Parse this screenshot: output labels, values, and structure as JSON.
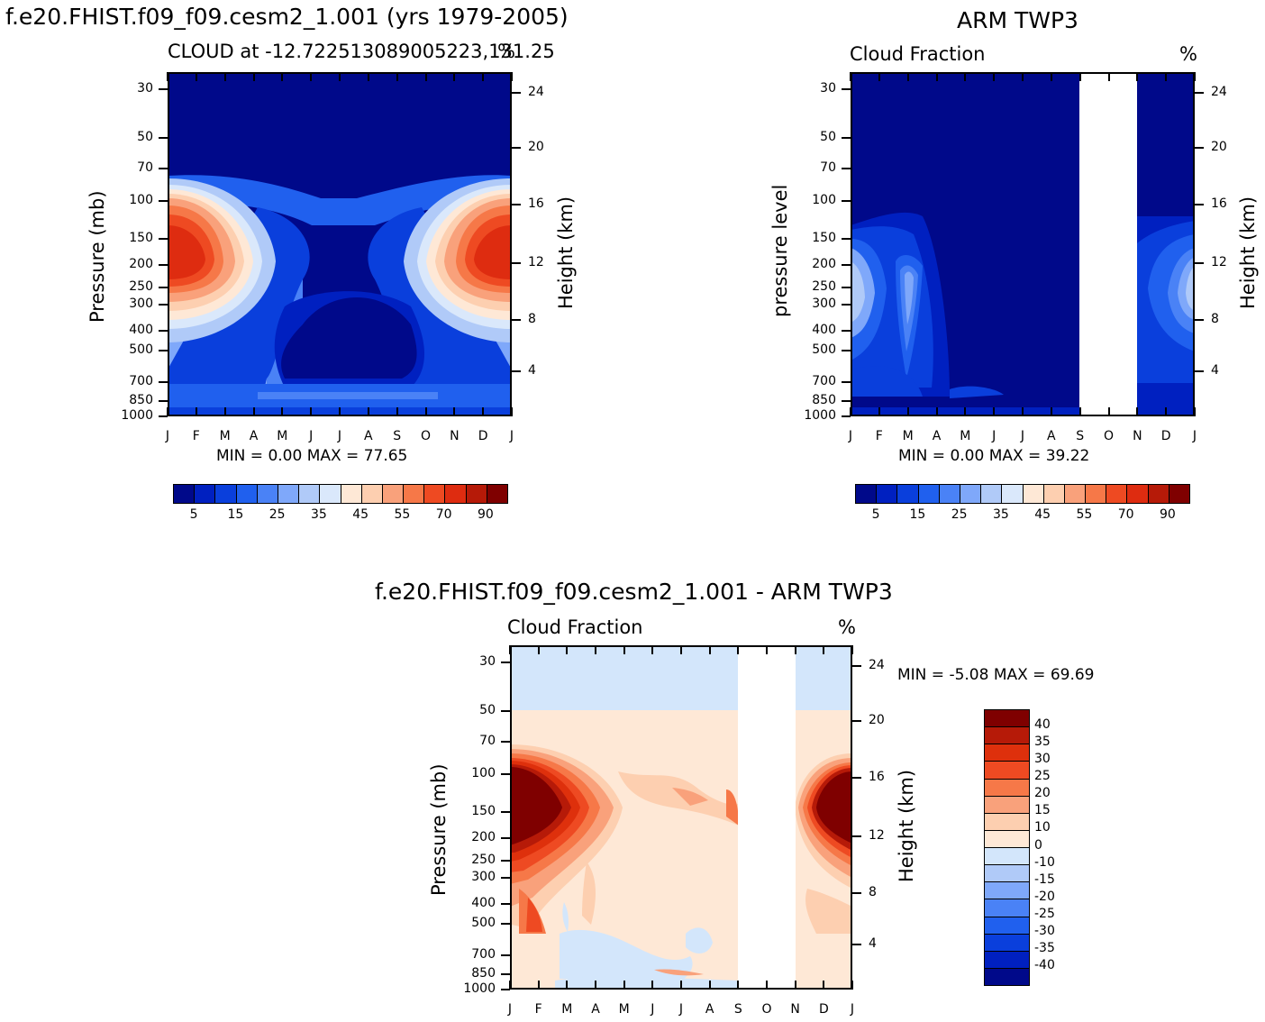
{
  "chart_data": [
    {
      "type": "heatmap",
      "title": "f.e20.FHIST.f09_f09.cesm2_1.001 (yrs 1979-2005)",
      "subtitle": "CLOUD at -12.722513089005223,131.25",
      "units": "%",
      "xlabel": "",
      "ylabel": "Pressure (mb)",
      "ylabel_right": "Height (km)",
      "x_ticks": [
        "J",
        "F",
        "M",
        "A",
        "M",
        "J",
        "J",
        "A",
        "S",
        "O",
        "N",
        "D",
        "J"
      ],
      "y_ticks": [
        "30",
        "50",
        "70",
        "100",
        "150",
        "200",
        "250",
        "300",
        "400",
        "500",
        "700",
        "850",
        "1000"
      ],
      "y_right_ticks": [
        "24",
        "20",
        "16",
        "12",
        "8",
        "4"
      ],
      "min_max": "MIN =  0.00 MAX =  77.65",
      "colorbar_labels": [
        "5",
        "15",
        "25",
        "35",
        "45",
        "55",
        "70",
        "90"
      ],
      "values_max_near": {
        "months": [
          "J",
          "F",
          "D"
        ],
        "pressure_mb": [
          150,
          200
        ],
        "value_pct": 77.65
      }
    },
    {
      "type": "heatmap",
      "title": "ARM TWP3",
      "subtitle": "Cloud Fraction",
      "units": "%",
      "ylabel": "pressure level",
      "ylabel_right": "Height (km)",
      "x_ticks": [
        "J",
        "F",
        "M",
        "A",
        "M",
        "J",
        "J",
        "A",
        "S",
        "O",
        "N",
        "D",
        "J"
      ],
      "y_ticks": [
        "30",
        "50",
        "70",
        "100",
        "150",
        "200",
        "250",
        "300",
        "400",
        "500",
        "700",
        "850",
        "1000"
      ],
      "y_right_ticks": [
        "24",
        "20",
        "16",
        "12",
        "8",
        "4"
      ],
      "min_max": "MIN =  0.00 MAX =  39.22",
      "colorbar_labels": [
        "5",
        "15",
        "25",
        "35",
        "45",
        "55",
        "70",
        "90"
      ],
      "missing_months": [
        "S",
        "O"
      ]
    },
    {
      "type": "heatmap",
      "title": "f.e20.FHIST.f09_f09.cesm2_1.001 - ARM TWP3",
      "subtitle": "Cloud Fraction",
      "units": "%",
      "ylabel": "Pressure (mb)",
      "ylabel_right": "Height (km)",
      "x_ticks": [
        "J",
        "F",
        "M",
        "A",
        "M",
        "J",
        "J",
        "A",
        "S",
        "O",
        "N",
        "D",
        "J"
      ],
      "y_ticks": [
        "30",
        "50",
        "70",
        "100",
        "150",
        "200",
        "250",
        "300",
        "400",
        "500",
        "700",
        "850",
        "1000"
      ],
      "y_right_ticks": [
        "24",
        "20",
        "16",
        "12",
        "8",
        "4"
      ],
      "min_max": "MIN =  -5.08 MAX =  69.69",
      "colorbar_labels": [
        "40",
        "35",
        "30",
        "25",
        "20",
        "15",
        "10",
        "0",
        "-10",
        "-15",
        "-20",
        "-25",
        "-30",
        "-35",
        "-40"
      ],
      "missing_months": [
        "S",
        "O"
      ]
    }
  ],
  "colors": {
    "seq": [
      "#00098a",
      "#0020c0",
      "#0a3fdc",
      "#2060ee",
      "#4a82f6",
      "#7fa8fa",
      "#b0caf8",
      "#dae8fb",
      "#fee8d6",
      "#fdcfb0",
      "#f9a17b",
      "#f67848",
      "#ee4a22",
      "#de2c10",
      "#b61a08",
      "#7f0000"
    ],
    "div": [
      "#7f0000",
      "#b61a08",
      "#de300c",
      "#ee4a22",
      "#f67848",
      "#f9a17b",
      "#fdcfb0",
      "#fee8d6",
      "#d3e6fb",
      "#b0caf8",
      "#7fa8fa",
      "#4a82f6",
      "#2060ee",
      "#0a3fdc",
      "#0020c0",
      "#00098a"
    ]
  }
}
